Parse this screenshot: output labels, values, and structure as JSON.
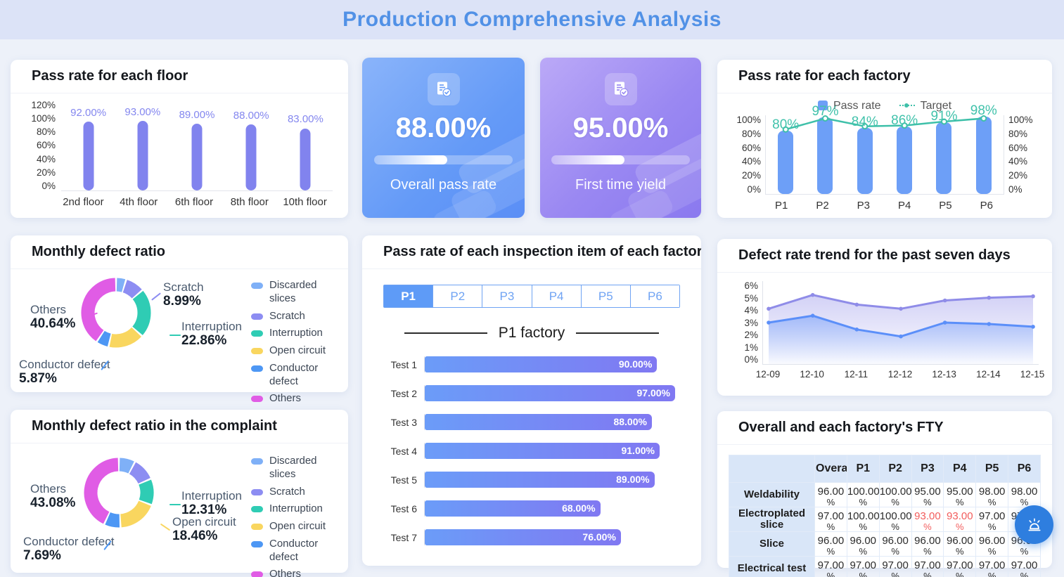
{
  "header": {
    "title": "Production Comprehensive Analysis"
  },
  "kpis": [
    {
      "value": "88.00%",
      "caption": "Overall pass rate",
      "progress_pct": 53,
      "icon": "report-check-icon",
      "accent": "#6d9ff7"
    },
    {
      "value": "95.00%",
      "caption": "First time yield",
      "progress_pct": 53,
      "icon": "report-check-icon",
      "accent": "#9b8cf2"
    }
  ],
  "defect_legend": [
    {
      "label": "Discarded slices",
      "color": "#7fb0f7"
    },
    {
      "label": "Scratch",
      "color": "#8d8df2"
    },
    {
      "label": "Interruption",
      "color": "#2fccb4"
    },
    {
      "label": "Open circuit",
      "color": "#f9d65f"
    },
    {
      "label": "Conductor defect",
      "color": "#4d97f4"
    },
    {
      "label": "Others",
      "color": "#e05ce5"
    }
  ],
  "chart_data": [
    {
      "id": "floor_pass_rate",
      "type": "bar",
      "title": "Pass rate for each floor",
      "categories": [
        "2nd floor",
        "4th floor",
        "6th floor",
        "8th floor",
        "10th floor"
      ],
      "values": [
        92,
        93,
        89,
        88,
        83
      ],
      "value_labels": [
        "92.00%",
        "93.00%",
        "89.00%",
        "88.00%",
        "83.00%"
      ],
      "yticks": [
        "120%",
        "100%",
        "80%",
        "60%",
        "40%",
        "20%",
        "0%"
      ],
      "ylim": [
        0,
        120
      ],
      "grid": false,
      "bar_color": "#8183ee",
      "label_color": "#8487ef"
    },
    {
      "id": "factory_pass_rate",
      "type": "bar+line",
      "title": "Pass rate for each factory",
      "legend": [
        {
          "name": "Pass rate",
          "type": "bar",
          "color": "#6d9ff7"
        },
        {
          "name": "Target",
          "type": "line",
          "color": "#3ec0a9"
        }
      ],
      "categories": [
        "P1",
        "P2",
        "P3",
        "P4",
        "P5",
        "P6"
      ],
      "series": [
        {
          "name": "Pass rate",
          "values": [
            80,
            97,
            84,
            86,
            91,
            98
          ]
        },
        {
          "name": "Target",
          "values": [
            82,
            96,
            86,
            87,
            92,
            96
          ]
        }
      ],
      "value_labels": [
        "80%",
        "97%",
        "84%",
        "86%",
        "91%",
        "98%"
      ],
      "yticks": [
        "100%",
        "80%",
        "60%",
        "40%",
        "20%",
        "0%"
      ],
      "ylim": [
        0,
        100
      ],
      "dual_axis": true
    },
    {
      "id": "monthly_defect_ratio",
      "type": "pie",
      "title": "Monthly defect ratio",
      "segments": [
        {
          "name": "Discarded slices",
          "value": 4.74,
          "color": "#7fb0f7"
        },
        {
          "name": "Scratch",
          "value": 8.99,
          "color": "#8d8df2"
        },
        {
          "name": "Interruption",
          "value": 22.86,
          "color": "#2fccb4"
        },
        {
          "name": "Open circuit",
          "value": 16.9,
          "color": "#f9d65f"
        },
        {
          "name": "Conductor defect",
          "value": 5.87,
          "color": "#4d97f4"
        },
        {
          "name": "Others",
          "value": 40.64,
          "color": "#e05ce5"
        }
      ],
      "callouts": {
        "scratch": {
          "name": "Scratch",
          "pct": "8.99%"
        },
        "interruption": {
          "name": "Interruption",
          "pct": "22.86%"
        },
        "others": {
          "name": "Others",
          "pct": "40.64%"
        },
        "conductor": {
          "name": "Conductor defect",
          "pct": "5.87%"
        }
      }
    },
    {
      "id": "inspection_pass_rate",
      "type": "bar-horizontal",
      "title": "Pass rate of each inspection item of each factory",
      "tabs": [
        "P1",
        "P2",
        "P3",
        "P4",
        "P5",
        "P6"
      ],
      "active_tab": "P1",
      "section_title": "P1 factory",
      "categories": [
        "Test 1",
        "Test 2",
        "Test 3",
        "Test 4",
        "Test 5",
        "Test 6",
        "Test 7"
      ],
      "values": [
        90,
        97,
        88,
        91,
        89,
        68,
        76
      ],
      "value_labels": [
        "90.00%",
        "97.00%",
        "88.00%",
        "91.00%",
        "89.00%",
        "68.00%",
        "76.00%"
      ],
      "xlim": [
        0,
        100
      ]
    },
    {
      "id": "defect_rate_trend",
      "type": "area",
      "title": "Defect rate trend for the past seven days",
      "x": [
        "12-09",
        "12-10",
        "12-11",
        "12-12",
        "12-13",
        "12-14",
        "12-15"
      ],
      "series": [
        {
          "name": "upper",
          "color": "#8f8ce8",
          "values": [
            4.0,
            5.0,
            4.3,
            4.0,
            4.6,
            4.8,
            4.9
          ]
        },
        {
          "name": "lower",
          "color": "#5b8ff9",
          "values": [
            3.0,
            3.5,
            2.5,
            2.0,
            3.0,
            2.9,
            2.7
          ]
        }
      ],
      "yticks": [
        "6%",
        "5%",
        "4%",
        "3%",
        "2%",
        "1%",
        "0%"
      ],
      "ylim": [
        0,
        6
      ],
      "grid": false
    },
    {
      "id": "complaint_defect_ratio",
      "type": "pie",
      "title": "Monthly defect ratio in the complaint",
      "segments": [
        {
          "name": "Discarded slices",
          "value": 7.69,
          "color": "#7fb0f7"
        },
        {
          "name": "Scratch",
          "value": 10.77,
          "color": "#8d8df2"
        },
        {
          "name": "Interruption",
          "value": 12.31,
          "color": "#2fccb4"
        },
        {
          "name": "Open circuit",
          "value": 18.46,
          "color": "#f9d65f"
        },
        {
          "name": "Conductor defect",
          "value": 7.69,
          "color": "#4d97f4"
        },
        {
          "name": "Others",
          "value": 43.08,
          "color": "#e05ce5"
        }
      ],
      "callouts": {
        "others": {
          "name": "Others",
          "pct": "43.08%"
        },
        "interruption": {
          "name": "Interruption",
          "pct": "12.31%"
        },
        "open_circuit": {
          "name": "Open circuit",
          "pct": "18.46%"
        },
        "conductor": {
          "name": "Conductor defect",
          "pct": "7.69%"
        }
      }
    },
    {
      "id": "fty_table",
      "type": "table",
      "title": "Overall and each factory's FTY",
      "columns": [
        "",
        "Overall",
        "P1",
        "P2",
        "P3",
        "P4",
        "P5",
        "P6"
      ],
      "unit": "%",
      "rows": [
        {
          "label": "Weldability",
          "values": [
            "96.00",
            "100.00",
            "100.00",
            "95.00",
            "95.00",
            "98.00",
            "98.00"
          ],
          "red_indexes": []
        },
        {
          "label": "Electroplated slice",
          "values": [
            "97.00",
            "100.00",
            "100.00",
            "93.00",
            "93.00",
            "97.00",
            "97.00"
          ],
          "red_indexes": [
            3,
            4
          ]
        },
        {
          "label": "Slice",
          "values": [
            "96.00",
            "96.00",
            "96.00",
            "96.00",
            "96.00",
            "96.00",
            "96.00"
          ],
          "red_indexes": []
        },
        {
          "label": "Electrical test",
          "values": [
            "97.00",
            "97.00",
            "97.00",
            "97.00",
            "97.00",
            "97.00",
            "97.00"
          ],
          "red_indexes": []
        }
      ],
      "alert_colors": {
        "red": "#f25d5d"
      }
    }
  ],
  "floating_button": {
    "icon": "alarm-siren-icon",
    "color": "#2e7edf"
  }
}
